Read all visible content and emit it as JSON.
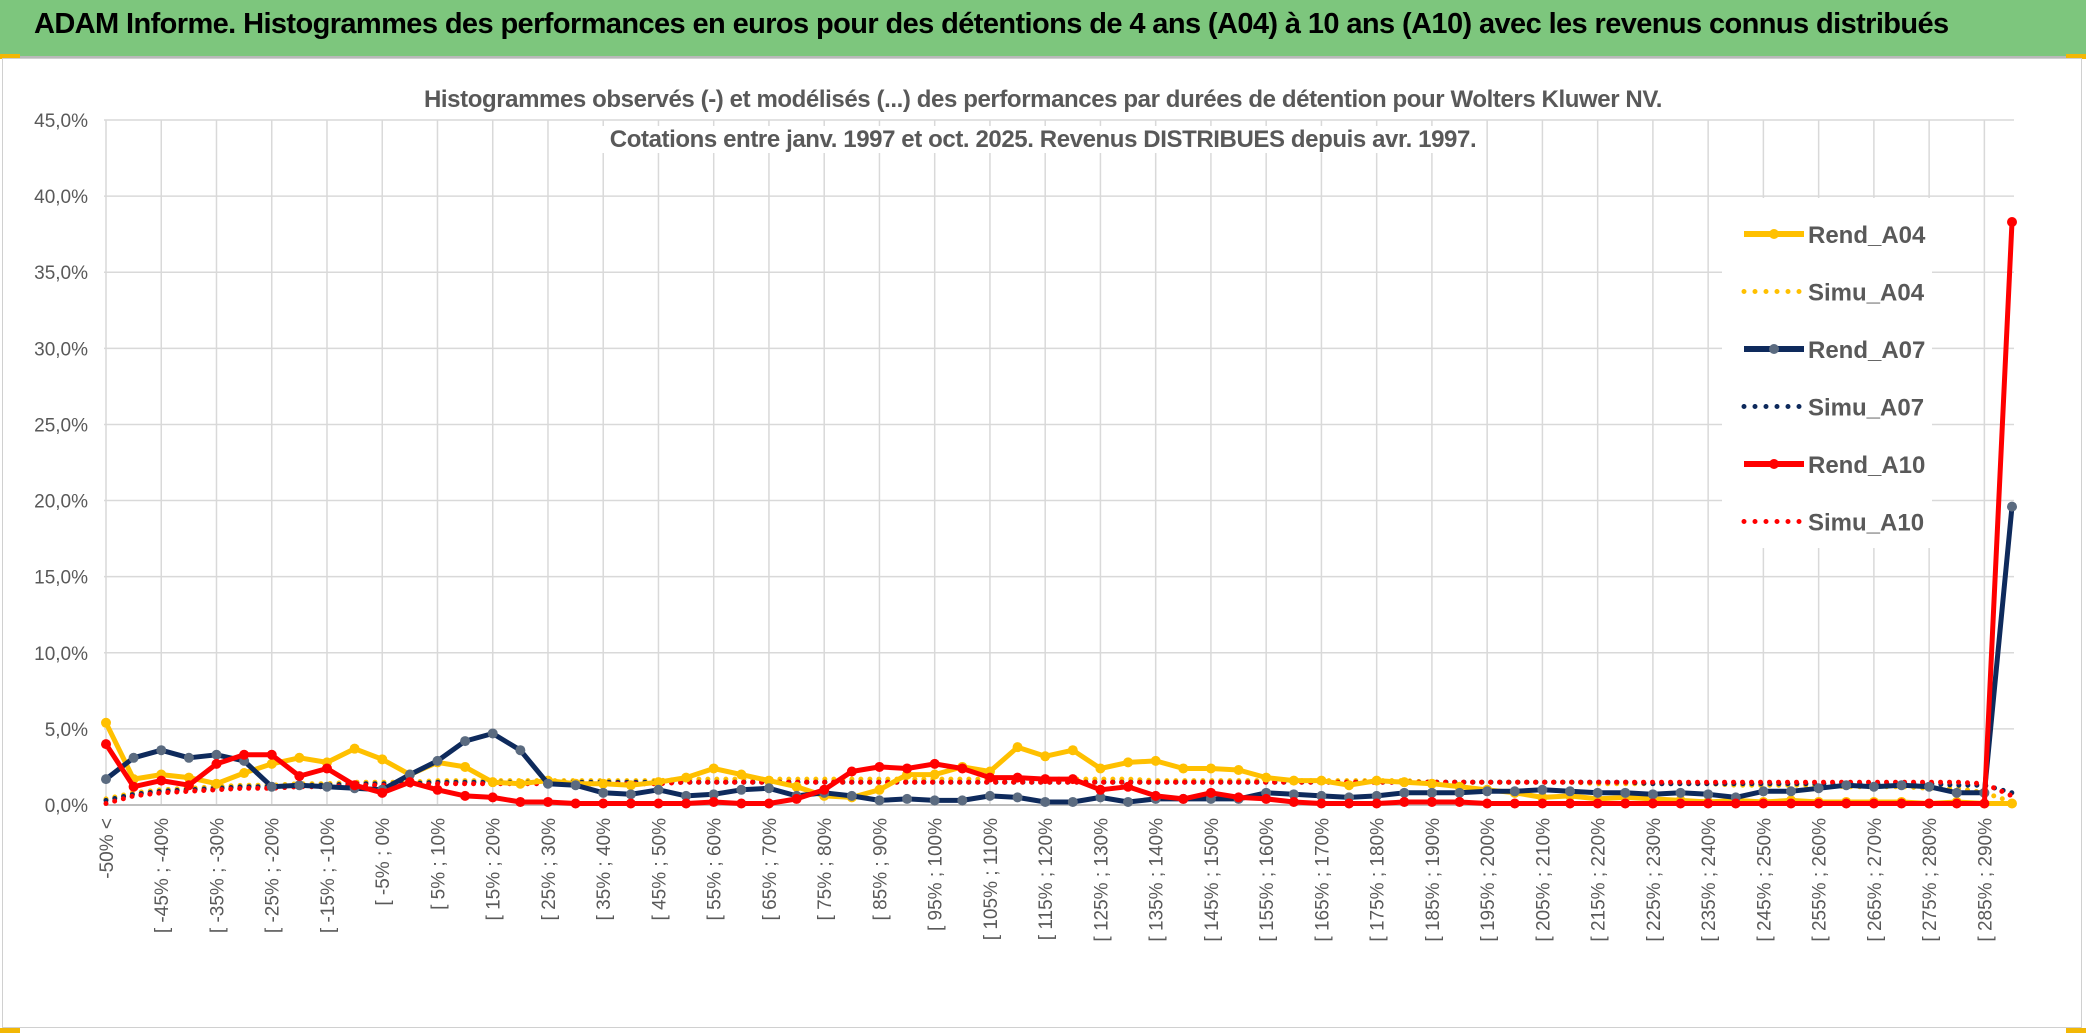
{
  "header": {
    "title": "ADAM Informe. Histogrammes des performances en euros pour des détentions de 4 ans (A04) à 10 ans (A10) avec les revenus connus distribués"
  },
  "colors": {
    "banner": "#7dc67d",
    "A04": "#ffc000",
    "A07": "#0e2a5c",
    "A07_marker": "#5b6b80",
    "A10": "#ff0000",
    "grid": "#d9d9d9",
    "axis_text": "#595959"
  },
  "chart_data": {
    "type": "line",
    "title": "Histogrammes observés (-) et modélisés (...) des performances par durées de détention pour Wolters Kluwer NV.",
    "subtitle": "Cotations entre janv. 1997 et oct. 2025. Revenus DISTRIBUES depuis avr. 1997.",
    "xlabel": "",
    "ylabel": "",
    "ylim": [
      0,
      45
    ],
    "y_ticks": [
      "0,0%",
      "5,0%",
      "10,0%",
      "15,0%",
      "20,0%",
      "25,0%",
      "30,0%",
      "35,0%",
      "40,0%",
      "45,0%"
    ],
    "x_tick_labels": [
      "-50% <",
      "[ -45% ; -40%",
      "[ -35% ; -30%",
      "[ -25% ; -20%",
      "[ -15% ; -10%",
      "[ -5% ; 0%",
      "[ 5% ; 10%",
      "[ 15% ; 20%",
      "[ 25% ; 30%",
      "[ 35% ; 40%",
      "[ 45% ; 50%",
      "[ 55% ; 60%",
      "[ 65% ; 70%",
      "[ 75% ; 80%",
      "[ 85% ; 90%",
      "[ 95% ; 100%",
      "[ 105% ; 110%",
      "[ 115% ; 120%",
      "[ 125% ; 130%",
      "[ 135% ; 140%",
      "[ 145% ; 150%",
      "[ 155% ; 160%",
      "[ 165% ; 170%",
      "[ 175% ; 180%",
      "[ 185% ; 190%",
      "[ 195% ; 200%",
      "[ 205% ; 210%",
      "[ 215% ; 220%",
      "[ 225% ; 230%",
      "[ 235% ; 240%",
      "[ 245% ; 250%",
      "[ 255% ; 260%",
      "[ 265% ; 270%",
      "[ 275% ; 280%",
      "[ 285% ; 290%"
    ],
    "legend_position": "right",
    "grid": true,
    "series": [
      {
        "name": "Rend_A04",
        "style": "solid",
        "color": "#ffc000",
        "marker_color": "#ffc000",
        "values": [
          5.4,
          1.7,
          2.0,
          1.8,
          1.4,
          2.1,
          2.7,
          3.1,
          2.8,
          3.7,
          3.0,
          2.0,
          2.8,
          2.5,
          1.5,
          1.4,
          1.6,
          1.4,
          1.4,
          1.3,
          1.5,
          1.8,
          2.4,
          2.0,
          1.6,
          1.2,
          0.6,
          0.5,
          1.0,
          2.0,
          2.0,
          2.5,
          2.2,
          3.8,
          3.2,
          3.6,
          2.4,
          2.8,
          2.9,
          2.4,
          2.4,
          2.3,
          1.8,
          1.6,
          1.6,
          1.3,
          1.6,
          1.5,
          1.4,
          1.2,
          1.0,
          0.8,
          0.5,
          0.6,
          0.4,
          0.5,
          0.4,
          0.3,
          0.2,
          0.3,
          0.2,
          0.3,
          0.2,
          0.2,
          0.2,
          0.2,
          0.1,
          0.2,
          0.1,
          0.1
        ]
      },
      {
        "name": "Simu_A04",
        "style": "dotted",
        "color": "#ffc000",
        "values": [
          0.4,
          0.8,
          1.0,
          1.1,
          1.2,
          1.3,
          1.3,
          1.4,
          1.4,
          1.5,
          1.5,
          1.5,
          1.6,
          1.6,
          1.6,
          1.6,
          1.6,
          1.6,
          1.6,
          1.6,
          1.6,
          1.7,
          1.7,
          1.7,
          1.7,
          1.7,
          1.7,
          1.7,
          1.7,
          1.7,
          1.7,
          1.7,
          1.7,
          1.7,
          1.7,
          1.7,
          1.7,
          1.7,
          1.6,
          1.6,
          1.6,
          1.6,
          1.6,
          1.6,
          1.6,
          1.6,
          1.6,
          1.6,
          1.5,
          1.5,
          1.5,
          1.5,
          1.5,
          1.5,
          1.4,
          1.4,
          1.4,
          1.4,
          1.4,
          1.3,
          1.3,
          1.3,
          1.3,
          1.2,
          1.2,
          1.2,
          1.1,
          1.1,
          0.8,
          0.2
        ]
      },
      {
        "name": "Rend_A07",
        "style": "solid",
        "color": "#0e2a5c",
        "marker_color": "#5b6b80",
        "values": [
          1.7,
          3.1,
          3.6,
          3.1,
          3.3,
          2.9,
          1.2,
          1.3,
          1.2,
          1.1,
          1.0,
          2.0,
          2.9,
          4.2,
          4.7,
          3.6,
          1.4,
          1.3,
          0.8,
          0.7,
          1.0,
          0.6,
          0.7,
          1.0,
          1.1,
          0.6,
          0.8,
          0.6,
          0.3,
          0.4,
          0.3,
          0.3,
          0.6,
          0.5,
          0.2,
          0.2,
          0.5,
          0.2,
          0.4,
          0.4,
          0.4,
          0.4,
          0.8,
          0.7,
          0.6,
          0.5,
          0.6,
          0.8,
          0.8,
          0.8,
          0.9,
          0.9,
          1.0,
          0.9,
          0.8,
          0.8,
          0.7,
          0.8,
          0.7,
          0.5,
          0.9,
          0.9,
          1.1,
          1.3,
          1.2,
          1.3,
          1.2,
          0.8,
          0.8,
          19.6
        ]
      },
      {
        "name": "Simu_A07",
        "style": "dotted",
        "color": "#0e2a5c",
        "values": [
          0.3,
          0.7,
          0.9,
          1.0,
          1.1,
          1.2,
          1.2,
          1.3,
          1.3,
          1.4,
          1.4,
          1.4,
          1.5,
          1.5,
          1.5,
          1.5,
          1.5,
          1.5,
          1.5,
          1.5,
          1.5,
          1.5,
          1.5,
          1.5,
          1.5,
          1.5,
          1.5,
          1.5,
          1.5,
          1.5,
          1.5,
          1.5,
          1.5,
          1.5,
          1.5,
          1.5,
          1.5,
          1.5,
          1.5,
          1.5,
          1.5,
          1.5,
          1.5,
          1.5,
          1.5,
          1.5,
          1.5,
          1.5,
          1.5,
          1.5,
          1.5,
          1.5,
          1.5,
          1.5,
          1.5,
          1.5,
          1.4,
          1.4,
          1.4,
          1.4,
          1.4,
          1.4,
          1.4,
          1.4,
          1.4,
          1.4,
          1.4,
          1.3,
          1.3,
          0.8
        ]
      },
      {
        "name": "Rend_A10",
        "style": "solid",
        "color": "#ff0000",
        "marker_color": "#ff0000",
        "values": [
          4.0,
          1.2,
          1.6,
          1.3,
          2.7,
          3.3,
          3.3,
          1.9,
          2.4,
          1.3,
          0.8,
          1.5,
          1.0,
          0.6,
          0.5,
          0.2,
          0.2,
          0.1,
          0.1,
          0.1,
          0.1,
          0.1,
          0.2,
          0.1,
          0.1,
          0.4,
          1.0,
          2.2,
          2.5,
          2.4,
          2.7,
          2.4,
          1.8,
          1.8,
          1.7,
          1.7,
          1.0,
          1.2,
          0.6,
          0.4,
          0.8,
          0.5,
          0.4,
          0.2,
          0.1,
          0.1,
          0.1,
          0.2,
          0.2,
          0.2,
          0.1,
          0.1,
          0.1,
          0.1,
          0.1,
          0.1,
          0.1,
          0.1,
          0.1,
          0.1,
          0.1,
          0.1,
          0.1,
          0.1,
          0.1,
          0.1,
          0.1,
          0.1,
          0.1,
          38.3
        ]
      },
      {
        "name": "Simu_A10",
        "style": "dotted",
        "color": "#ff0000",
        "values": [
          0.1,
          0.6,
          0.8,
          0.9,
          1.0,
          1.1,
          1.1,
          1.2,
          1.2,
          1.3,
          1.3,
          1.3,
          1.4,
          1.4,
          1.4,
          1.4,
          1.4,
          1.4,
          1.4,
          1.4,
          1.4,
          1.5,
          1.5,
          1.5,
          1.5,
          1.5,
          1.5,
          1.5,
          1.5,
          1.5,
          1.5,
          1.5,
          1.5,
          1.5,
          1.5,
          1.5,
          1.5,
          1.5,
          1.5,
          1.5,
          1.5,
          1.5,
          1.5,
          1.5,
          1.5,
          1.5,
          1.5,
          1.5,
          1.5,
          1.5,
          1.5,
          1.5,
          1.5,
          1.5,
          1.5,
          1.5,
          1.5,
          1.5,
          1.5,
          1.5,
          1.5,
          1.5,
          1.5,
          1.5,
          1.5,
          1.5,
          1.5,
          1.5,
          1.4,
          0.6
        ]
      }
    ]
  }
}
